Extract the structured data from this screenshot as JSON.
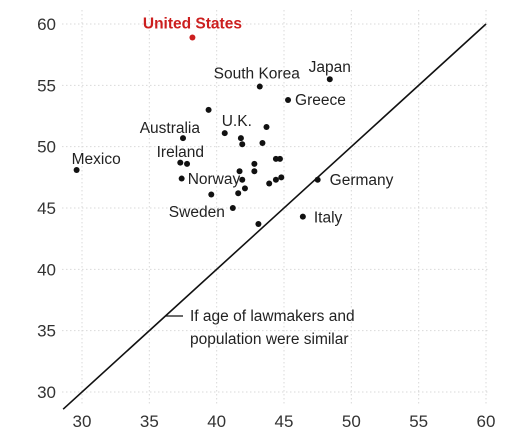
{
  "chart_data": {
    "type": "scatter",
    "title": "",
    "xlabel": "",
    "ylabel": "",
    "xlim": [
      29,
      60
    ],
    "ylim": [
      29,
      61
    ],
    "xticks": [
      30,
      35,
      40,
      45,
      50,
      55,
      60
    ],
    "yticks": [
      30,
      35,
      40,
      45,
      50,
      55,
      60
    ],
    "grid": true,
    "reference_line": {
      "label_lines": [
        "If age of lawmakers and",
        "population were similar"
      ],
      "slope": 1
    },
    "highlight_color": "#cc1f1f",
    "points": [
      {
        "x": 38.2,
        "y": 58.9,
        "label": "United States",
        "highlight": true
      },
      {
        "x": 48.4,
        "y": 55.5,
        "label": "Japan"
      },
      {
        "x": 43.2,
        "y": 54.9,
        "label": "South Korea"
      },
      {
        "x": 45.3,
        "y": 53.8,
        "label": "Greece"
      },
      {
        "x": 39.4,
        "y": 53.0,
        "label": ""
      },
      {
        "x": 43.7,
        "y": 51.6,
        "label": ""
      },
      {
        "x": 40.6,
        "y": 51.1,
        "label": "U.K."
      },
      {
        "x": 37.5,
        "y": 50.7,
        "label": "Australia"
      },
      {
        "x": 41.8,
        "y": 50.7,
        "label": ""
      },
      {
        "x": 41.9,
        "y": 50.2,
        "label": ""
      },
      {
        "x": 43.4,
        "y": 50.3,
        "label": ""
      },
      {
        "x": 29.6,
        "y": 48.1,
        "label": "Mexico"
      },
      {
        "x": 37.3,
        "y": 48.7,
        "label": ""
      },
      {
        "x": 37.8,
        "y": 48.6,
        "label": "Ireland"
      },
      {
        "x": 42.8,
        "y": 48.6,
        "label": ""
      },
      {
        "x": 41.7,
        "y": 48.0,
        "label": ""
      },
      {
        "x": 42.8,
        "y": 48.0,
        "label": ""
      },
      {
        "x": 44.4,
        "y": 49.0,
        "label": ""
      },
      {
        "x": 44.7,
        "y": 49.0,
        "label": ""
      },
      {
        "x": 37.4,
        "y": 47.4,
        "label": ""
      },
      {
        "x": 41.9,
        "y": 47.3,
        "label": "Norway"
      },
      {
        "x": 44.4,
        "y": 47.3,
        "label": ""
      },
      {
        "x": 44.8,
        "y": 47.5,
        "label": ""
      },
      {
        "x": 43.9,
        "y": 47.0,
        "label": ""
      },
      {
        "x": 42.1,
        "y": 46.6,
        "label": ""
      },
      {
        "x": 39.6,
        "y": 46.1,
        "label": ""
      },
      {
        "x": 41.6,
        "y": 46.2,
        "label": ""
      },
      {
        "x": 47.5,
        "y": 47.3,
        "label": "Germany"
      },
      {
        "x": 41.2,
        "y": 45.0,
        "label": "Sweden"
      },
      {
        "x": 46.4,
        "y": 44.3,
        "label": "Italy"
      },
      {
        "x": 43.1,
        "y": 43.7,
        "label": ""
      }
    ]
  }
}
